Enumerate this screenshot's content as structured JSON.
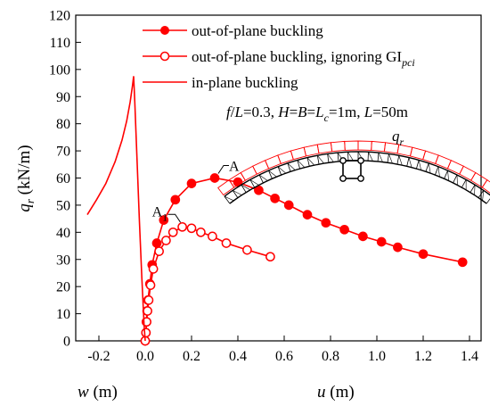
{
  "chart_data": {
    "type": "line",
    "xlim": [
      -0.3,
      1.45
    ],
    "ylim": [
      0,
      120
    ],
    "x_ticks": [
      -0.2,
      0.0,
      0.2,
      0.4,
      0.6,
      0.8,
      1.0,
      1.2,
      1.4
    ],
    "x_tick_labels": [
      "-0.2",
      "0.0",
      "0.2",
      "0.4",
      "0.6",
      "0.8",
      "1.0",
      "1.2",
      "1.4"
    ],
    "y_ticks": [
      0,
      10,
      20,
      30,
      40,
      50,
      60,
      70,
      80,
      90,
      100,
      110,
      120
    ],
    "y_tick_labels": [
      "0",
      "10",
      "20",
      "30",
      "40",
      "50",
      "60",
      "70",
      "80",
      "90",
      "100",
      "110",
      "120"
    ],
    "ylabel": {
      "main": "q",
      "sub": "r",
      "unit": " (kN/m)"
    },
    "xlabel_left": {
      "var": "w",
      "unit": " (m)"
    },
    "xlabel_right": {
      "var": "u",
      "unit": " (m)"
    },
    "grid": false,
    "legend_position": "top-left",
    "color": "#ff0000",
    "series": [
      {
        "name": "out-of-plane buckling",
        "marker": "filled-circle",
        "points": [
          [
            0,
            0
          ],
          [
            0.003,
            3
          ],
          [
            0.005,
            7
          ],
          [
            0.008,
            11
          ],
          [
            0.012,
            15
          ],
          [
            0.02,
            21
          ],
          [
            0.03,
            28
          ],
          [
            0.05,
            36
          ],
          [
            0.08,
            44.5
          ],
          [
            0.13,
            52
          ],
          [
            0.2,
            58
          ],
          [
            0.3,
            60
          ],
          [
            0.4,
            58.5
          ],
          [
            0.49,
            55.5
          ],
          [
            0.56,
            52.5
          ],
          [
            0.62,
            50
          ],
          [
            0.7,
            46.5
          ],
          [
            0.78,
            43.5
          ],
          [
            0.86,
            41
          ],
          [
            0.94,
            38.5
          ],
          [
            1.02,
            36.5
          ],
          [
            1.09,
            34.5
          ],
          [
            1.2,
            32
          ],
          [
            1.37,
            29
          ]
        ]
      },
      {
        "name": "out-of-plane buckling, ignoring GI",
        "name_subscript": "pci",
        "marker": "open-circle",
        "points": [
          [
            0,
            0
          ],
          [
            0.003,
            3
          ],
          [
            0.006,
            7
          ],
          [
            0.01,
            11
          ],
          [
            0.015,
            15
          ],
          [
            0.023,
            20.5
          ],
          [
            0.035,
            26.5
          ],
          [
            0.06,
            33
          ],
          [
            0.09,
            37
          ],
          [
            0.12,
            40
          ],
          [
            0.16,
            42
          ],
          [
            0.2,
            41.5
          ],
          [
            0.24,
            40
          ],
          [
            0.29,
            38.5
          ],
          [
            0.35,
            36
          ],
          [
            0.44,
            33.5
          ],
          [
            0.54,
            31
          ]
        ]
      },
      {
        "name": "in-plane buckling",
        "marker": "none",
        "points": [
          [
            -0.25,
            46.5
          ],
          [
            -0.21,
            52
          ],
          [
            -0.17,
            58
          ],
          [
            -0.13,
            66
          ],
          [
            -0.1,
            74
          ],
          [
            -0.08,
            81
          ],
          [
            -0.065,
            88
          ],
          [
            -0.055,
            94
          ],
          [
            -0.05,
            97.5
          ],
          [
            -0.045,
            88
          ],
          [
            -0.035,
            66
          ],
          [
            -0.025,
            44
          ],
          [
            -0.015,
            24
          ],
          [
            -0.005,
            6
          ],
          [
            0,
            0
          ]
        ]
      }
    ],
    "annotations": [
      {
        "text": "A",
        "x": 0.3,
        "y": 60
      },
      {
        "text": "A",
        "sub": "1",
        "x": 0.16,
        "y": 42
      }
    ],
    "inset_note": {
      "prefix": "f",
      "seg1": "/",
      "L1": "L",
      "seg2": "=0.3, ",
      "H": "H",
      "seg3": "=",
      "B": "B",
      "seg4": "=",
      "Lc": "L",
      "Lc_sub": "c",
      "seg5": "=1m, ",
      "L2": "L",
      "seg6": "=50m"
    },
    "inset_load_label": {
      "main": "q",
      "sub": "r"
    }
  }
}
